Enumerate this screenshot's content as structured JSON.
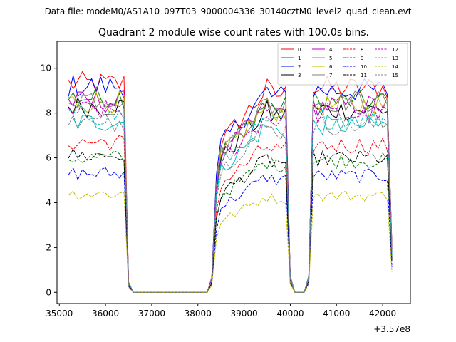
{
  "figure": {
    "suptitle": "Data file: modeM0/AS1A10_097T03_9000004336_30140cztM0_level2_quad_clean.evt",
    "title": "Quadrant 2 module wise count rates with 100.0s bins.",
    "x_offset_label": "+3.57e8"
  },
  "chart_data": {
    "type": "line",
    "title": "Quadrant 2 module wise count rates with 100.0s bins.",
    "xlabel": "",
    "ylabel": "",
    "x_offset": 357000000,
    "xlim": [
      34950,
      42600
    ],
    "ylim": [
      -0.5,
      11.2
    ],
    "xticks": [
      35000,
      36000,
      37000,
      38000,
      39000,
      40000,
      41000,
      42000
    ],
    "yticks": [
      0,
      2,
      4,
      6,
      8,
      10
    ],
    "grid": false,
    "legend_placement": "top-right",
    "legend_columns": 4,
    "segments": [
      {
        "x0": 35200,
        "n": 14
      },
      {
        "x0": 36600,
        "n": 19
      },
      {
        "x0": 38500,
        "n": 16
      },
      {
        "x0": 40100,
        "n": 5
      },
      {
        "x0": 40600,
        "n": 17
      }
    ],
    "series": [
      {
        "name": "0",
        "color": "#ff0000",
        "dash": "solid",
        "base": 9.3,
        "edge": 6.5
      },
      {
        "name": "1",
        "color": "#008000",
        "dash": "solid",
        "base": 8.7,
        "edge": 6.0
      },
      {
        "name": "2",
        "color": "#0000ff",
        "dash": "solid",
        "base": 9.2,
        "edge": 6.3
      },
      {
        "name": "3",
        "color": "#000000",
        "dash": "solid",
        "base": 8.3,
        "edge": 5.8
      },
      {
        "name": "4",
        "color": "#bf00bf",
        "dash": "solid",
        "base": 8.5,
        "edge": 5.9
      },
      {
        "name": "5",
        "color": "#00bfbf",
        "dash": "solid",
        "base": 7.6,
        "edge": 5.4
      },
      {
        "name": "6",
        "color": "#bfbf00",
        "dash": "solid",
        "base": 8.5,
        "edge": 5.9
      },
      {
        "name": "7",
        "color": "#808080",
        "dash": "solid",
        "base": 8.7,
        "edge": 6.0
      },
      {
        "name": "8",
        "color": "#ff0000",
        "dash": "dashed",
        "base": 6.7,
        "edge": 5.0
      },
      {
        "name": "9",
        "color": "#008000",
        "dash": "dashed",
        "base": 6.0,
        "edge": 4.6
      },
      {
        "name": "10",
        "color": "#0000ff",
        "dash": "dashed",
        "base": 5.3,
        "edge": 3.9
      },
      {
        "name": "11",
        "color": "#000000",
        "dash": "dashed",
        "base": 6.1,
        "edge": 4.7
      },
      {
        "name": "12",
        "color": "#bf00bf",
        "dash": "dashed",
        "base": 8.1,
        "edge": 5.7
      },
      {
        "name": "13",
        "color": "#00bfbf",
        "dash": "dashed",
        "base": 7.9,
        "edge": 5.6
      },
      {
        "name": "14",
        "color": "#bfbf00",
        "dash": "dashed",
        "base": 4.4,
        "edge": 3.3
      },
      {
        "name": "15",
        "color": "#808080",
        "dash": "dashed",
        "base": 7.6,
        "edge": 5.4
      }
    ]
  }
}
